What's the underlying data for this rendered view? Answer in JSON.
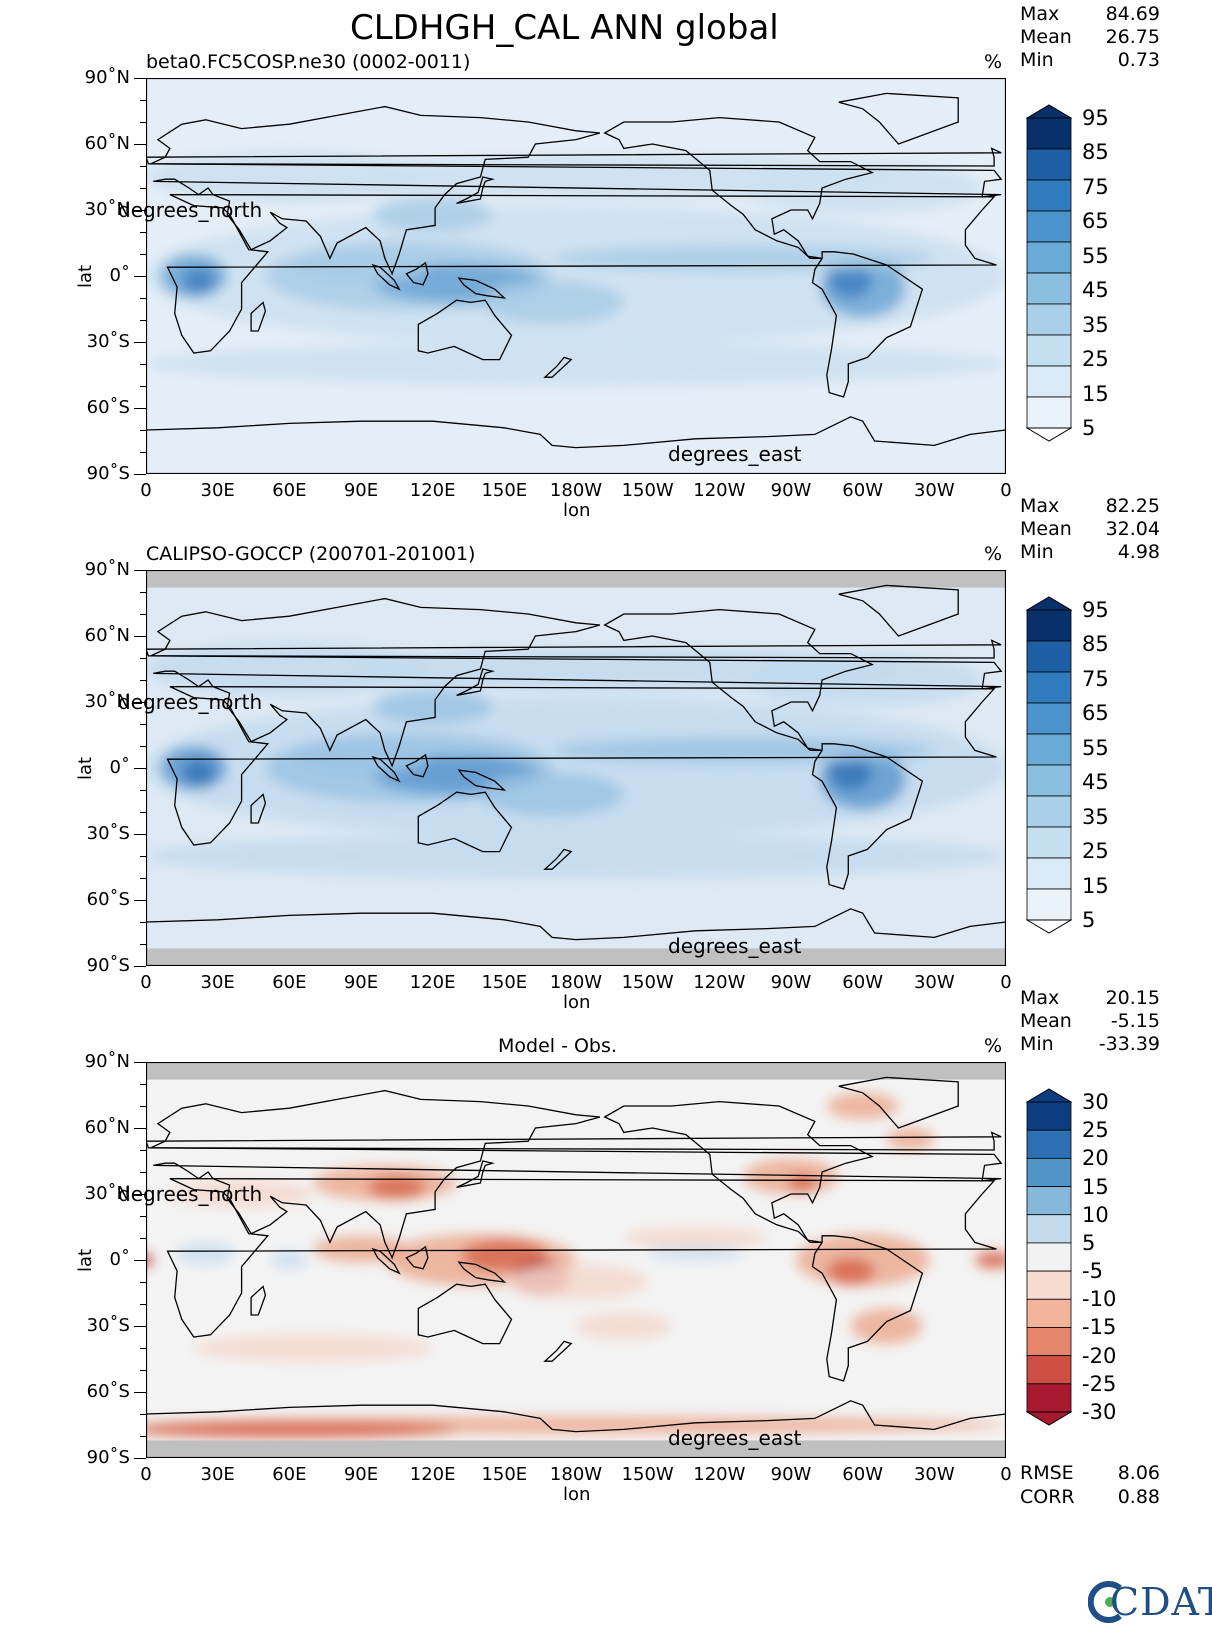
{
  "figure": {
    "title": "CLDHGH_CAL ANN global",
    "logo_text": "CDAT"
  },
  "panels": [
    {
      "id": "model",
      "subtitle": "beta0.FC5COSP.ne30 (0002-0011)",
      "units": "%",
      "stats": [
        {
          "label": "Max",
          "value": "84.69"
        },
        {
          "label": "Mean",
          "value": "26.75"
        },
        {
          "label": "Min",
          "value": "0.73"
        }
      ],
      "colorbar": {
        "labels": [
          "95",
          "85",
          "75",
          "65",
          "55",
          "45",
          "35",
          "25",
          "15",
          "5"
        ],
        "colors": [
          "#08306b",
          "#1c5fa5",
          "#2f7bbd",
          "#4a94cb",
          "#6aaad6",
          "#8bbfe0",
          "#a9d0e8",
          "#c3dff0",
          "#d9eaf6",
          "#ebf3fa"
        ]
      },
      "field_colors": {
        "base": "#e4eef7",
        "light": "#cde0f0",
        "mid": "#a9cce6",
        "strong": "#6ea7d6",
        "peak": "#3f80c1"
      }
    },
    {
      "id": "obs",
      "subtitle": "CALIPSO-GOCCP (200701-201001)",
      "units": "%",
      "stats": [
        {
          "label": "Max",
          "value": "82.25"
        },
        {
          "label": "Mean",
          "value": "32.04"
        },
        {
          "label": "Min",
          "value": "4.98"
        }
      ],
      "colorbar": {
        "labels": [
          "95",
          "85",
          "75",
          "65",
          "55",
          "45",
          "35",
          "25",
          "15",
          "5"
        ],
        "colors": [
          "#08306b",
          "#1c5fa5",
          "#2f7bbd",
          "#4a94cb",
          "#6aaad6",
          "#8bbfe0",
          "#a9d0e8",
          "#c3dff0",
          "#d9eaf6",
          "#ebf3fa"
        ]
      },
      "field_colors": {
        "base": "#dde9f4",
        "light": "#c3dbee",
        "mid": "#9cc4e4",
        "strong": "#5f9ad0",
        "peak": "#3675b8"
      },
      "missing_color": "#c0c0c0"
    },
    {
      "id": "diff",
      "subtitle": "Model - Obs.",
      "units": "%",
      "stats": [
        {
          "label": "Max",
          "value": "20.15"
        },
        {
          "label": "Mean",
          "value": "-5.15"
        },
        {
          "label": "Min",
          "value": "-33.39"
        }
      ],
      "colorbar": {
        "labels": [
          "30",
          "25",
          "20",
          "15",
          "10",
          "5",
          "-5",
          "-10",
          "-15",
          "-20",
          "-25",
          "-30"
        ],
        "colors": [
          "#0b3d80",
          "#2c6fb3",
          "#5194c7",
          "#86b8db",
          "#c3dbed",
          "#f2f2f2",
          "#f6dcd0",
          "#f2b59c",
          "#e5856b",
          "#cd4f43",
          "#a6192e"
        ]
      },
      "field_colors": {
        "base": "#f3f3f3",
        "light": "#f5d8cb",
        "mid": "#ecab92",
        "strong": "#d8694f",
        "peak": "#b32e33",
        "blue": "#c9def0"
      },
      "missing_color": "#c0c0c0",
      "metrics": [
        {
          "label": "RMSE",
          "value": "8.06"
        },
        {
          "label": "CORR",
          "value": "0.88"
        }
      ]
    }
  ],
  "axes": {
    "lat_ticks": [
      "90˚N",
      "60˚N",
      "30˚N",
      "0˚",
      "30˚S",
      "60˚S",
      "90˚S"
    ],
    "lon_ticks": [
      "0",
      "30E",
      "60E",
      "90E",
      "120E",
      "150E",
      "180W",
      "150W",
      "120W",
      "90W",
      "60W",
      "30W",
      "0"
    ],
    "xlabel": "lon",
    "ylabel": "lat",
    "lat_units": "degrees_north",
    "lon_units": "degrees_east"
  }
}
